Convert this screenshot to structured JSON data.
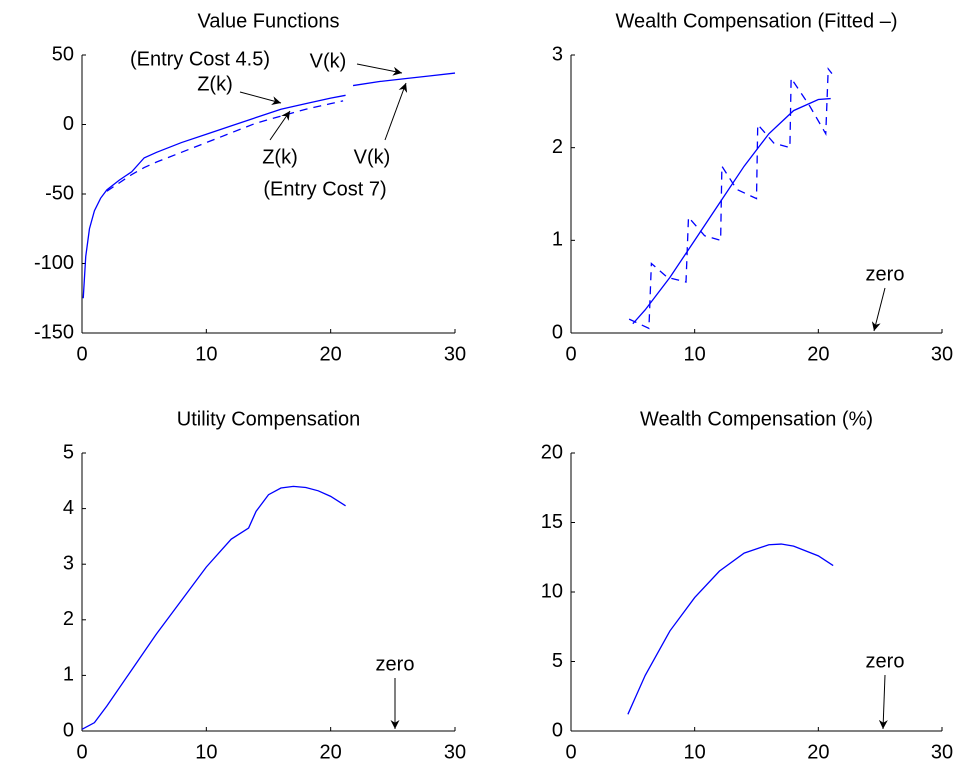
{
  "chart_data": [
    {
      "type": "line",
      "title": "Value Functions",
      "xlim": [
        0,
        30
      ],
      "ylim": [
        -150,
        50
      ],
      "xticks": [
        0,
        10,
        20,
        30
      ],
      "yticks": [
        50,
        0,
        -50,
        -100,
        -150
      ],
      "annotations": [
        "(Entry Cost 4.5)",
        "Z(k)",
        "V(k)",
        "Z(k)",
        "V(k)",
        "(Entry Cost 7)"
      ],
      "series": [
        {
          "color": "#0000ff",
          "linestyle": "solid",
          "x": [
            0.1,
            0.3,
            0.6,
            1,
            1.5,
            2,
            3,
            4,
            5,
            6,
            8,
            10,
            12,
            14,
            16,
            18,
            20,
            21.2
          ],
          "values": [
            -125,
            -95,
            -75,
            -62,
            -53,
            -47,
            -40,
            -34,
            -24,
            -20,
            -13,
            -7,
            -1,
            5,
            11,
            15,
            19,
            21
          ]
        },
        {
          "color": "#0000ff",
          "linestyle": "solid",
          "x": [
            21.8,
            24,
            26,
            28,
            30
          ],
          "values": [
            28,
            31,
            33,
            35,
            37
          ]
        },
        {
          "color": "#0000ff",
          "linestyle": "dashed",
          "x": [
            2,
            3,
            4,
            5,
            6,
            8,
            10,
            12,
            14,
            16,
            18,
            20,
            21
          ],
          "values": [
            -48,
            -42,
            -36,
            -31,
            -27,
            -20,
            -13,
            -6,
            1,
            6,
            11,
            15,
            17
          ]
        }
      ]
    },
    {
      "type": "line",
      "title": "Wealth Compensation (Fitted –)",
      "xlim": [
        0,
        30
      ],
      "ylim": [
        0,
        3
      ],
      "xticks": [
        0,
        10,
        20,
        30
      ],
      "yticks": [
        0,
        1,
        2,
        3
      ],
      "annotations": [
        "zero"
      ],
      "series": [
        {
          "color": "#0000ff",
          "linestyle": "solid",
          "x": [
            5,
            6,
            8,
            10,
            12,
            14,
            16,
            18,
            20,
            21
          ],
          "values": [
            0.1,
            0.25,
            0.6,
            1.0,
            1.4,
            1.8,
            2.15,
            2.4,
            2.52,
            2.53
          ]
        },
        {
          "color": "#0000ff",
          "linestyle": "dashed",
          "x": [
            4.7,
            6.3,
            6.5,
            7.8,
            9.3,
            9.5,
            10.8,
            12.1,
            12.2,
            13.4,
            15.0,
            15.1,
            16.4,
            17.7,
            17.8,
            19.3,
            20.6,
            20.8,
            21.1
          ],
          "values": [
            0.15,
            0.05,
            0.75,
            0.6,
            0.55,
            1.25,
            1.05,
            1.0,
            1.8,
            1.55,
            1.45,
            2.25,
            2.05,
            2.0,
            2.75,
            2.45,
            2.15,
            2.85,
            2.8
          ]
        }
      ]
    },
    {
      "type": "line",
      "title": "Utility Compensation",
      "xlim": [
        0,
        30
      ],
      "ylim": [
        0,
        5
      ],
      "xticks": [
        0,
        10,
        20,
        30
      ],
      "yticks": [
        0,
        1,
        2,
        3,
        4,
        5
      ],
      "annotations": [
        "zero"
      ],
      "series": [
        {
          "color": "#0000ff",
          "linestyle": "solid",
          "x": [
            0,
            1,
            2,
            4,
            6,
            8,
            10,
            12,
            13.4,
            14,
            15,
            16,
            17,
            18,
            19,
            20,
            21.2
          ],
          "values": [
            0.03,
            0.15,
            0.45,
            1.1,
            1.75,
            2.35,
            2.95,
            3.45,
            3.65,
            3.95,
            4.25,
            4.37,
            4.4,
            4.38,
            4.32,
            4.22,
            4.05
          ]
        }
      ]
    },
    {
      "type": "line",
      "title": "Wealth Compensation (%)",
      "xlim": [
        0,
        30
      ],
      "ylim": [
        0,
        20
      ],
      "xticks": [
        0,
        10,
        20,
        30
      ],
      "yticks": [
        0,
        5,
        10,
        15,
        20
      ],
      "annotations": [
        "zero"
      ],
      "series": [
        {
          "color": "#0000ff",
          "linestyle": "solid",
          "x": [
            4.6,
            6,
            8,
            10,
            12,
            14,
            16,
            17,
            18,
            20,
            21.2
          ],
          "values": [
            1.2,
            4,
            7.2,
            9.6,
            11.5,
            12.8,
            13.4,
            13.45,
            13.3,
            12.6,
            11.9
          ]
        }
      ]
    }
  ]
}
